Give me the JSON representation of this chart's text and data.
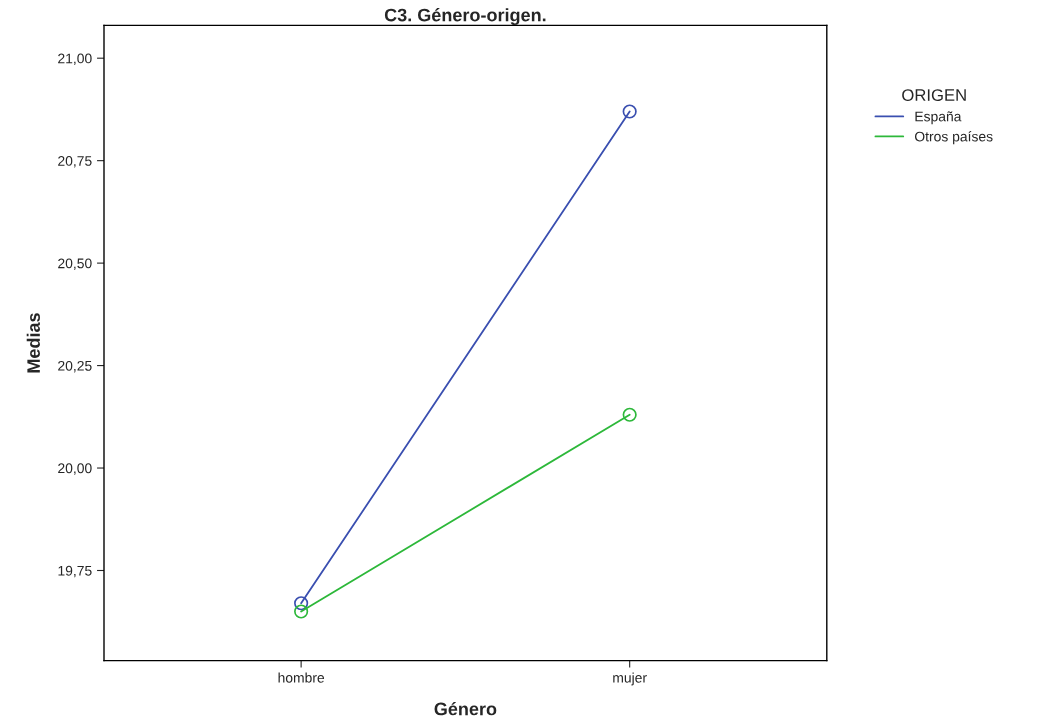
{
  "chart_data": {
    "type": "line",
    "title": "C3. Género-origen.",
    "xlabel": "Género",
    "ylabel": "Medias",
    "legend_title": "ORIGEN",
    "categories": [
      "hombre",
      "mujer"
    ],
    "series": [
      {
        "name": "España",
        "color": "#3a4fb0",
        "values": [
          19.67,
          20.87
        ]
      },
      {
        "name": "Otros países",
        "color": "#2db83a",
        "values": [
          19.65,
          20.13
        ]
      }
    ],
    "ylim": [
      19.53,
      21.08
    ],
    "yticks": [
      {
        "value": 19.75,
        "label": "19,75"
      },
      {
        "value": 20.0,
        "label": "20,00"
      },
      {
        "value": 20.25,
        "label": "20,25"
      },
      {
        "value": 20.5,
        "label": "20,50"
      },
      {
        "value": 20.75,
        "label": "20,75"
      },
      {
        "value": 21.0,
        "label": "21,00"
      }
    ],
    "marker": "circle",
    "line_style": "solid",
    "grid": false,
    "legend": "right"
  }
}
